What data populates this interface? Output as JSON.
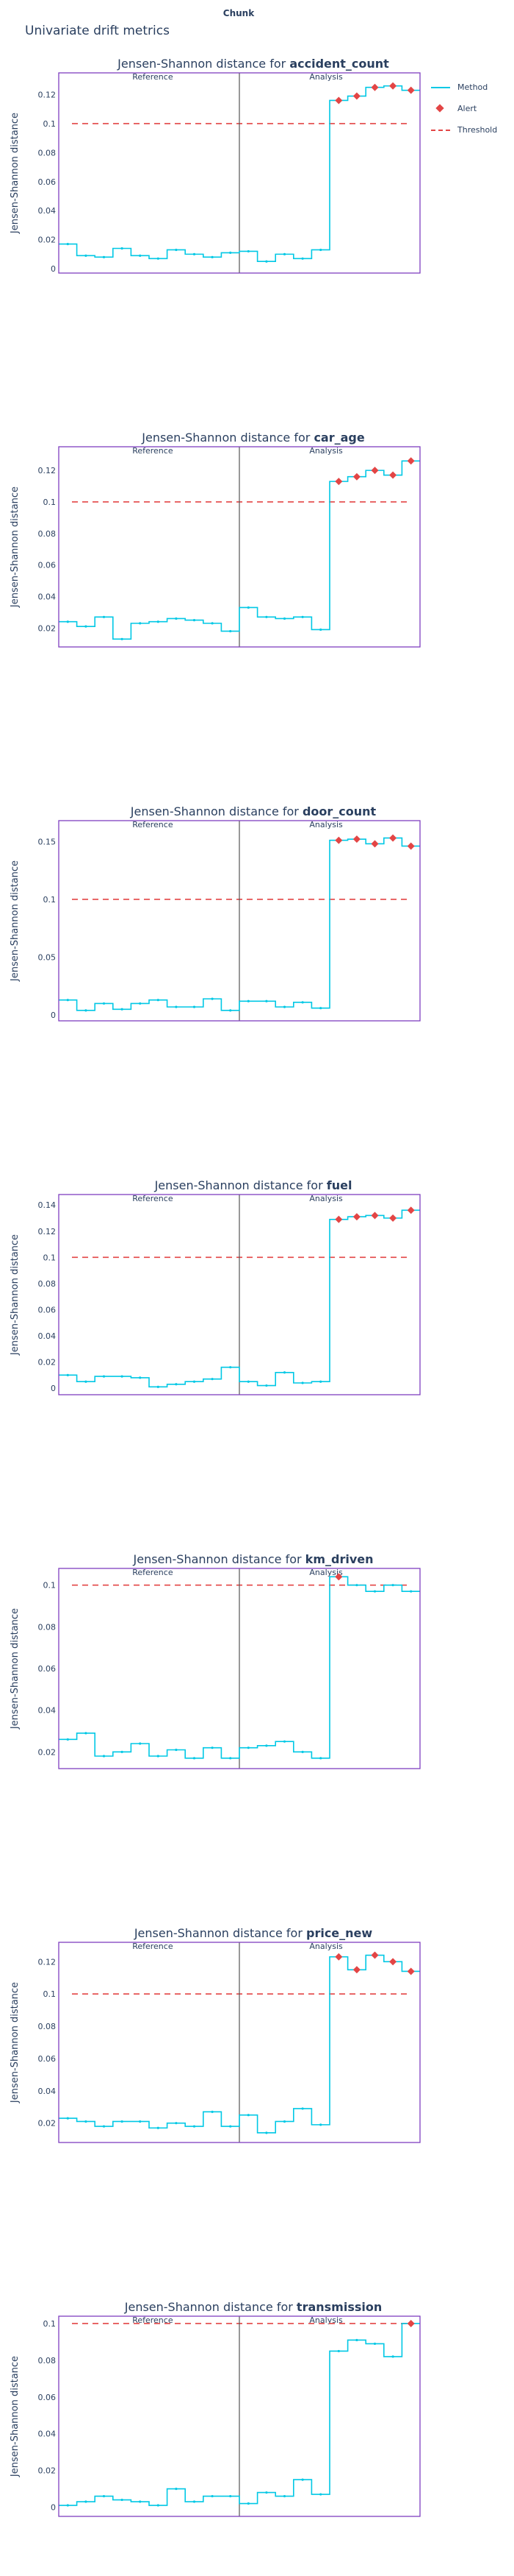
{
  "header": {
    "chunk_label": "Chunk",
    "title": "Univariate drift metrics"
  },
  "legend": [
    {
      "label": "Method",
      "kind": "method"
    },
    {
      "label": "Alert",
      "kind": "alert"
    },
    {
      "label": "Threshold",
      "kind": "threshold"
    }
  ],
  "colors": {
    "method": "#00c8e5",
    "alert": "#e34545",
    "threshold": "#e34545",
    "frame": "#7f3fbf",
    "divider": "#555555"
  },
  "chart_data": [
    {
      "type": "line",
      "title_prefix": "Jensen-Shannon distance for ",
      "feature": "accident_count",
      "ylabel": "Jensen-Shannon distance",
      "reference_label": "Reference",
      "analysis_label": "Analysis",
      "ylim": [
        -0.003,
        0.135
      ],
      "yticks": [
        0,
        0.02,
        0.04,
        0.06,
        0.08,
        0.1,
        0.12
      ],
      "threshold": 0.1,
      "reference": [
        0.017,
        0.009,
        0.008,
        0.014,
        0.009,
        0.007,
        0.013,
        0.01,
        0.008,
        0.011
      ],
      "analysis": [
        0.012,
        0.005,
        0.01,
        0.007,
        0.013,
        0.116,
        0.119,
        0.125,
        0.126,
        0.123
      ],
      "alerts": [
        5,
        6,
        7,
        8,
        9
      ]
    },
    {
      "type": "line",
      "title_prefix": "Jensen-Shannon distance for ",
      "feature": "car_age",
      "ylabel": "Jensen-Shannon distance",
      "reference_label": "Reference",
      "analysis_label": "Analysis",
      "ylim": [
        0.008,
        0.135
      ],
      "yticks": [
        0.02,
        0.04,
        0.06,
        0.08,
        0.1,
        0.12
      ],
      "threshold": 0.1,
      "reference": [
        0.024,
        0.021,
        0.027,
        0.013,
        0.023,
        0.024,
        0.026,
        0.025,
        0.023,
        0.018
      ],
      "analysis": [
        0.033,
        0.027,
        0.026,
        0.027,
        0.019,
        0.113,
        0.116,
        0.12,
        0.117,
        0.126
      ],
      "alerts": [
        5,
        6,
        7,
        8,
        9
      ]
    },
    {
      "type": "line",
      "title_prefix": "Jensen-Shannon distance for ",
      "feature": "door_count",
      "ylabel": "Jensen-Shannon distance",
      "reference_label": "Reference",
      "analysis_label": "Analysis",
      "ylim": [
        -0.005,
        0.168
      ],
      "yticks": [
        0,
        0.05,
        0.1,
        0.15
      ],
      "threshold": 0.1,
      "reference": [
        0.013,
        0.004,
        0.01,
        0.005,
        0.01,
        0.013,
        0.007,
        0.007,
        0.014,
        0.004
      ],
      "analysis": [
        0.012,
        0.012,
        0.007,
        0.011,
        0.006,
        0.151,
        0.152,
        0.148,
        0.153,
        0.146
      ],
      "alerts": [
        5,
        6,
        7,
        8,
        9
      ]
    },
    {
      "type": "line",
      "title_prefix": "Jensen-Shannon distance for ",
      "feature": "fuel",
      "ylabel": "Jensen-Shannon distance",
      "reference_label": "Reference",
      "analysis_label": "Analysis",
      "ylim": [
        -0.005,
        0.148
      ],
      "yticks": [
        0,
        0.02,
        0.04,
        0.06,
        0.08,
        0.1,
        0.12,
        0.14
      ],
      "threshold": 0.1,
      "reference": [
        0.01,
        0.005,
        0.009,
        0.009,
        0.008,
        0.001,
        0.003,
        0.005,
        0.007,
        0.016
      ],
      "analysis": [
        0.005,
        0.002,
        0.012,
        0.004,
        0.005,
        0.129,
        0.131,
        0.132,
        0.13,
        0.136
      ],
      "alerts": [
        5,
        6,
        7,
        8,
        9
      ]
    },
    {
      "type": "line",
      "title_prefix": "Jensen-Shannon distance for ",
      "feature": "km_driven",
      "ylabel": "Jensen-Shannon distance",
      "reference_label": "Reference",
      "analysis_label": "Analysis",
      "ylim": [
        0.012,
        0.108
      ],
      "yticks": [
        0.02,
        0.04,
        0.06,
        0.08,
        0.1
      ],
      "threshold": 0.1,
      "reference": [
        0.026,
        0.029,
        0.018,
        0.02,
        0.024,
        0.018,
        0.021,
        0.017,
        0.022,
        0.017
      ],
      "analysis": [
        0.022,
        0.023,
        0.025,
        0.02,
        0.017,
        0.104,
        0.1,
        0.097,
        0.1,
        0.097
      ],
      "alerts": [
        5
      ]
    },
    {
      "type": "line",
      "title_prefix": "Jensen-Shannon distance for ",
      "feature": "price_new",
      "ylabel": "Jensen-Shannon distance",
      "reference_label": "Reference",
      "analysis_label": "Analysis",
      "ylim": [
        0.008,
        0.132
      ],
      "yticks": [
        0.02,
        0.04,
        0.06,
        0.08,
        0.1,
        0.12
      ],
      "threshold": 0.1,
      "reference": [
        0.023,
        0.021,
        0.018,
        0.021,
        0.021,
        0.017,
        0.02,
        0.018,
        0.027,
        0.018
      ],
      "analysis": [
        0.025,
        0.014,
        0.021,
        0.029,
        0.019,
        0.123,
        0.115,
        0.124,
        0.12,
        0.114
      ],
      "alerts": [
        5,
        6,
        7,
        8,
        9
      ]
    },
    {
      "type": "line",
      "title_prefix": "Jensen-Shannon distance for ",
      "feature": "transmission",
      "ylabel": "Jensen-Shannon distance",
      "reference_label": "Reference",
      "analysis_label": "Analysis",
      "ylim": [
        -0.005,
        0.104
      ],
      "yticks": [
        0,
        0.02,
        0.04,
        0.06,
        0.08,
        0.1
      ],
      "threshold": 0.1,
      "reference": [
        0.001,
        0.003,
        0.006,
        0.004,
        0.003,
        0.001,
        0.01,
        0.003,
        0.006,
        0.006
      ],
      "analysis": [
        0.002,
        0.008,
        0.006,
        0.015,
        0.007,
        0.085,
        0.091,
        0.089,
        0.082,
        0.1
      ],
      "alerts": [
        9
      ]
    }
  ]
}
